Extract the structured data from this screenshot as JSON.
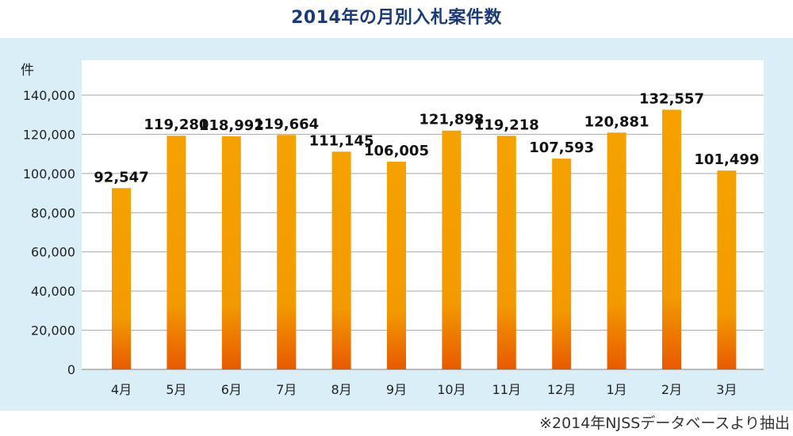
{
  "title": "2014年の月別入札案件数",
  "source_note": "※2014年NJSSデータベースより抽出",
  "colors": {
    "title": "#1a3a78",
    "panel_background": "#daeef8",
    "plot_background": "#ffffff",
    "bar_top": "#f5a200",
    "bar_bottom": "#e85a00",
    "grid": "#a8a8a8"
  },
  "chart_data": {
    "type": "bar",
    "title": "2014年の月別入札案件数",
    "ylabel": "件",
    "xlabel": "",
    "categories": [
      "4月",
      "5月",
      "6月",
      "7月",
      "8月",
      "9月",
      "10月",
      "11月",
      "12月",
      "1月",
      "2月",
      "3月"
    ],
    "values": [
      92547,
      119280,
      118992,
      119664,
      111145,
      106005,
      121898,
      119218,
      107593,
      120881,
      132557,
      101499
    ],
    "value_labels": [
      "92,547",
      "119,280",
      "118,992",
      "119,664",
      "111,145",
      "106,005",
      "121,898",
      "119,218",
      "107,593",
      "120,881",
      "132,557",
      "101,499"
    ],
    "ylim": [
      0,
      140000
    ],
    "yticks": [
      0,
      20000,
      40000,
      60000,
      80000,
      100000,
      120000,
      140000
    ],
    "ytick_labels": [
      "0",
      "20,000",
      "40,000",
      "60,000",
      "80,000",
      "100,000",
      "120,000",
      "140,000"
    ],
    "grid": true,
    "legend": "none"
  }
}
